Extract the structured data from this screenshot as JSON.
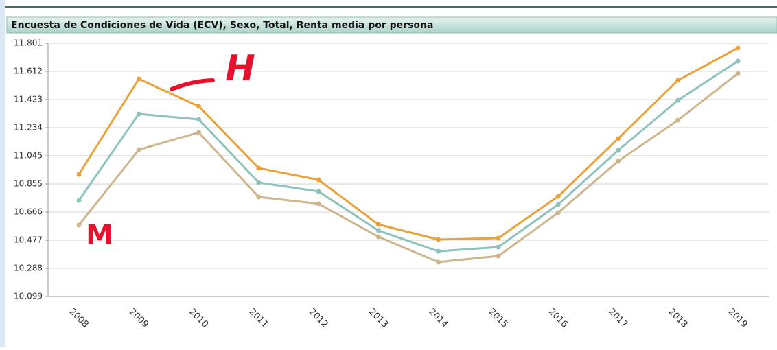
{
  "chart_data": {
    "type": "line",
    "title": "Encuesta de Condiciones de Vida (ECV), Sexo, Total, Renta media por persona",
    "categories": [
      "2008",
      "2009",
      "2010",
      "2011",
      "2012",
      "2013",
      "2014",
      "2015",
      "2016",
      "2017",
      "2018",
      "2019"
    ],
    "series": [
      {
        "color": "#e9a23b",
        "values": [
          10920,
          11561,
          11377,
          10962,
          10883,
          10583,
          10482,
          10491,
          10772,
          11160,
          11552,
          11769
        ]
      },
      {
        "color": "#8ec2bd",
        "values": [
          10745,
          11326,
          11289,
          10865,
          10805,
          10542,
          10403,
          10431,
          10717,
          11081,
          11418,
          11681
        ]
      },
      {
        "color": "#cdb68e",
        "values": [
          10579,
          11086,
          11201,
          10768,
          10722,
          10500,
          10330,
          10371,
          10662,
          11008,
          11284,
          11598
        ]
      }
    ],
    "ylim": [
      10099,
      11801
    ],
    "yticks": [
      {
        "value": 10099,
        "label": "10.099"
      },
      {
        "value": 10288,
        "label": "10.288"
      },
      {
        "value": 10477,
        "label": "10.477"
      },
      {
        "value": 10666,
        "label": "10.666"
      },
      {
        "value": 10855,
        "label": "10.855"
      },
      {
        "value": 11045,
        "label": "11.045"
      },
      {
        "value": 11234,
        "label": "11.234"
      },
      {
        "value": 11423,
        "label": "11.423"
      },
      {
        "value": 11612,
        "label": "11.612"
      },
      {
        "value": 11801,
        "label": "11.801"
      }
    ],
    "grid": true,
    "annotations": [
      "H",
      "M"
    ]
  }
}
